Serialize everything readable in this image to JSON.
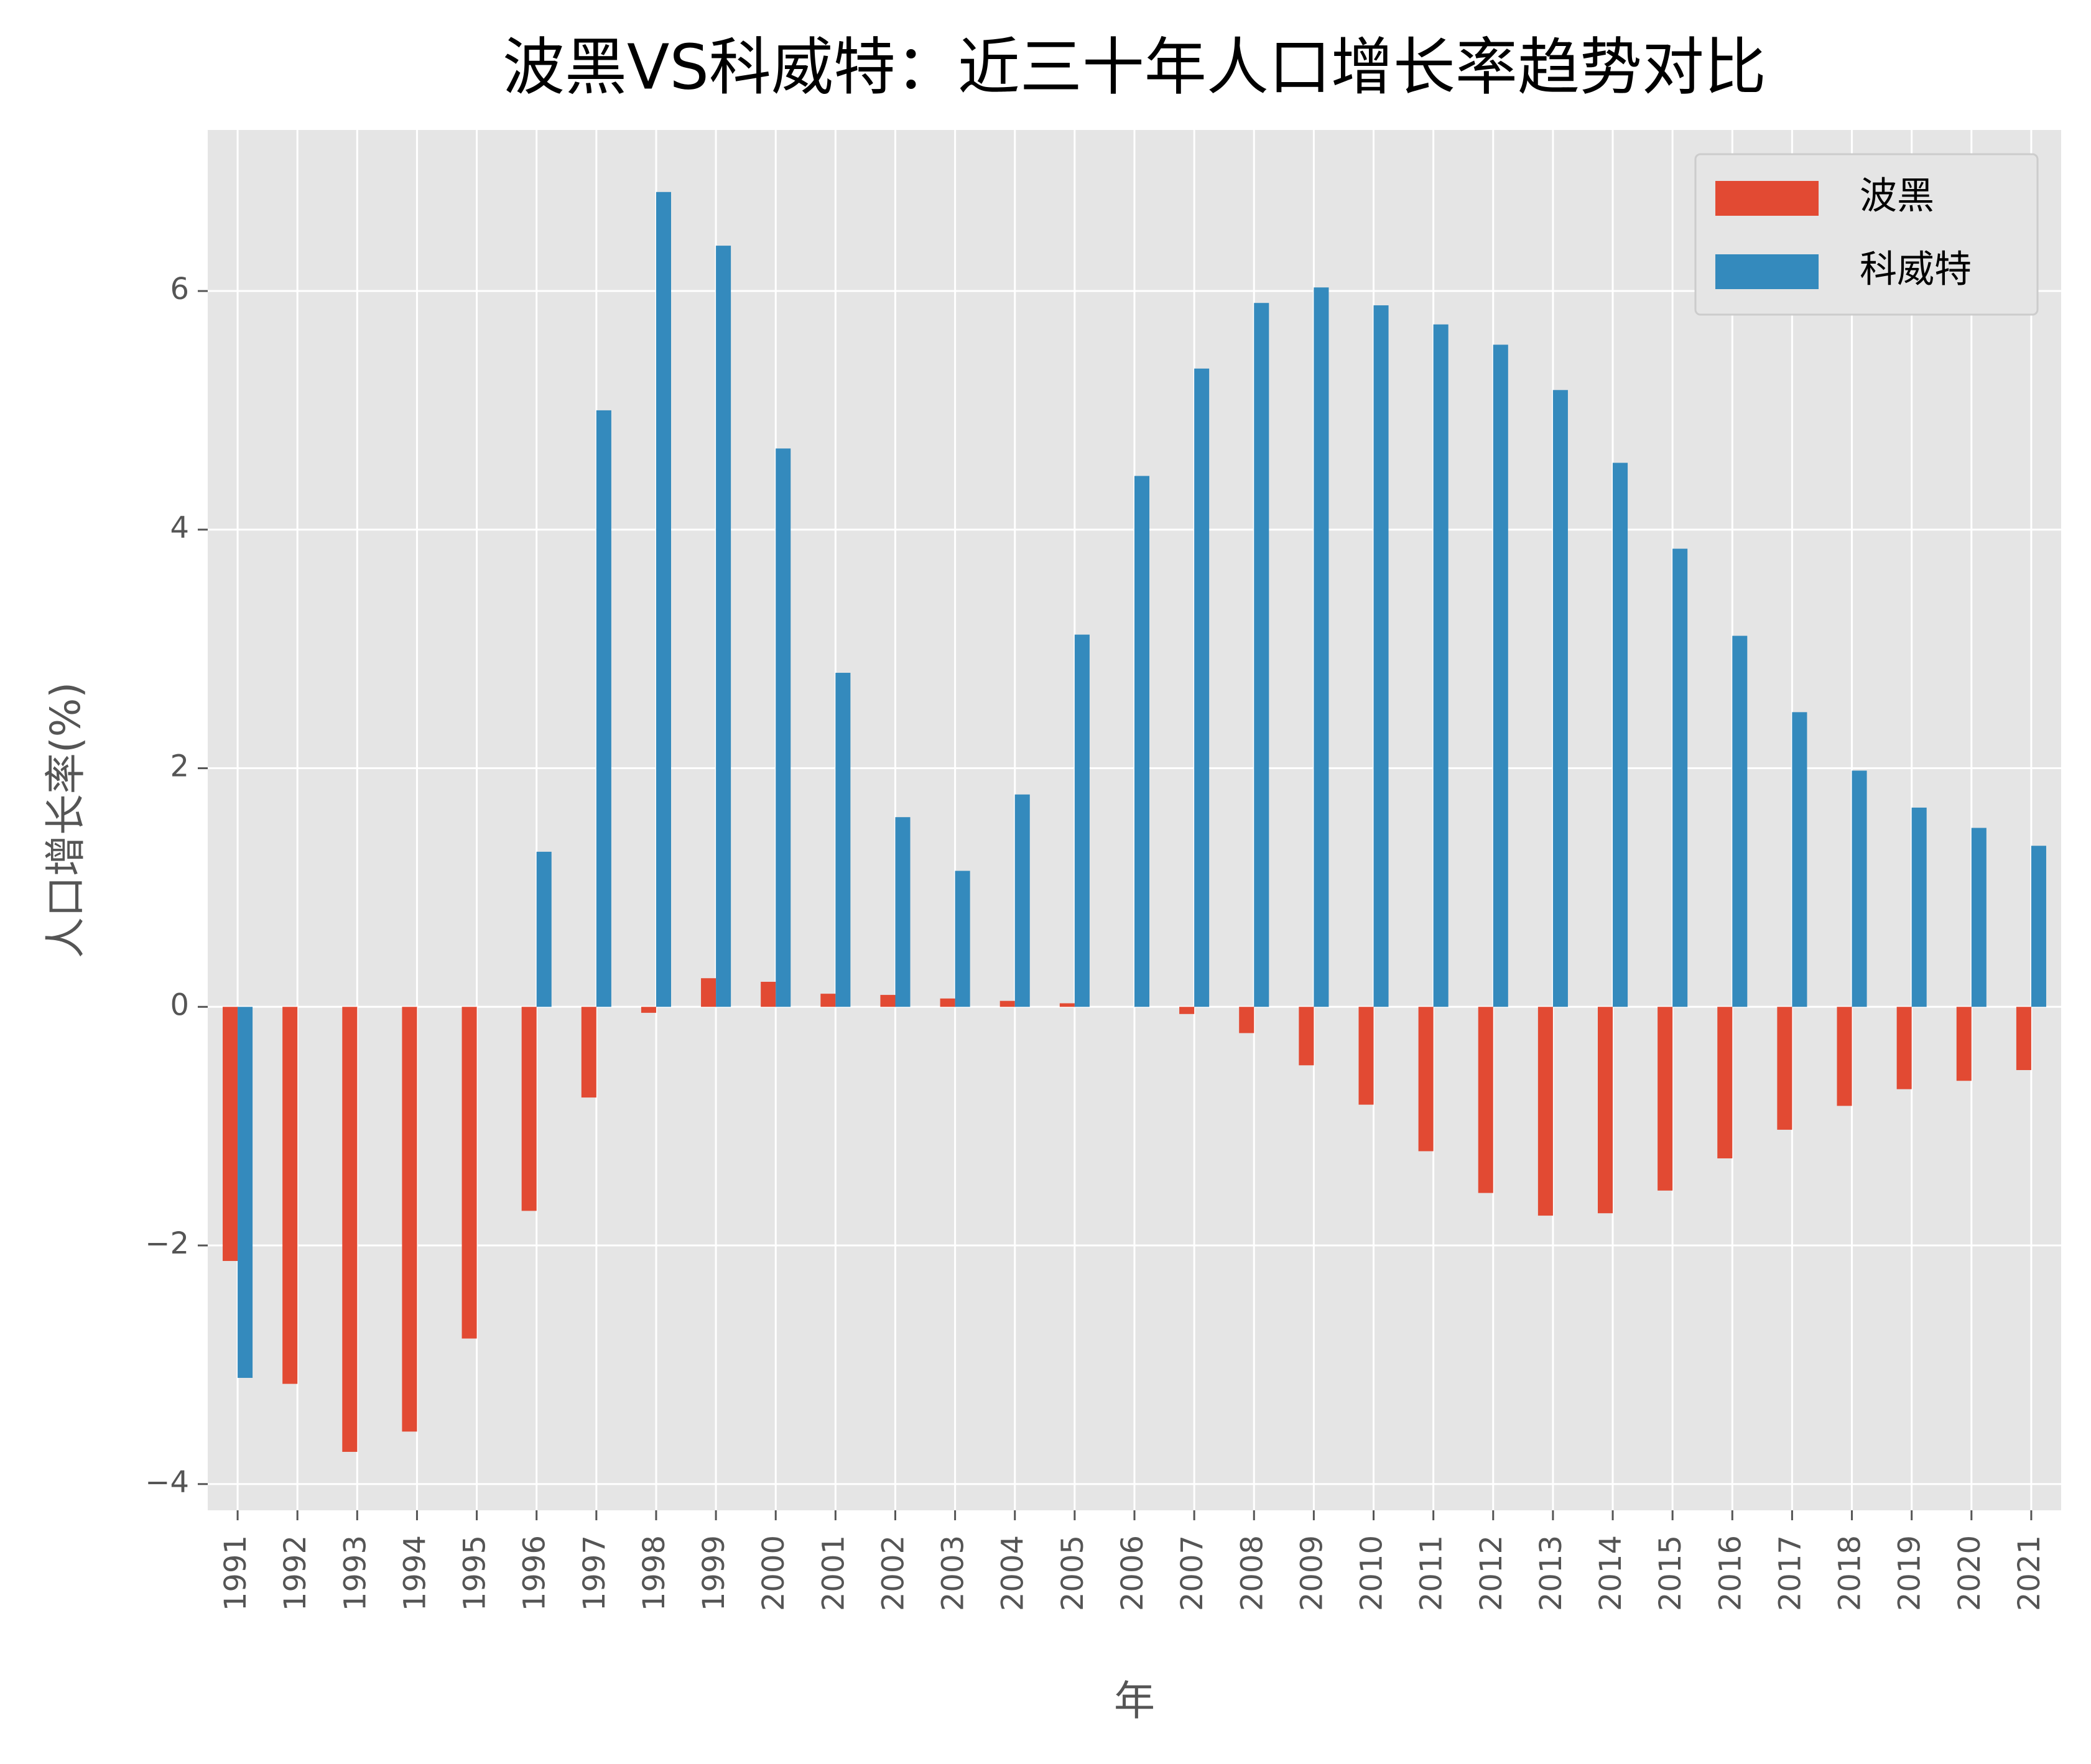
{
  "chart_data": {
    "type": "bar",
    "title": "波黑VS科威特：近三十年人口增长率趋势对比",
    "x_label": "年",
    "y_label": "人口增长率(%)",
    "categories": [
      "1991",
      "1992",
      "1993",
      "1994",
      "1995",
      "1996",
      "1997",
      "1998",
      "1999",
      "2000",
      "2001",
      "2002",
      "2003",
      "2004",
      "2005",
      "2006",
      "2007",
      "2008",
      "2009",
      "2010",
      "2011",
      "2012",
      "2013",
      "2014",
      "2015",
      "2016",
      "2017",
      "2018",
      "2019",
      "2020",
      "2021"
    ],
    "series": [
      {
        "name": "波黑",
        "color": "#E24A33",
        "values": [
          -2.13,
          -3.16,
          -3.73,
          -3.56,
          -2.78,
          -1.71,
          -0.76,
          -0.05,
          0.24,
          0.21,
          0.11,
          0.1,
          0.07,
          0.05,
          0.03,
          0.0,
          -0.06,
          -0.22,
          -0.49,
          -0.82,
          -1.21,
          -1.56,
          -1.75,
          -1.73,
          -1.54,
          -1.27,
          -1.03,
          -0.83,
          -0.69,
          -0.62,
          -0.53
        ]
      },
      {
        "name": "科威特",
        "color": "#348ABD",
        "values": [
          -3.11,
          null,
          null,
          null,
          null,
          1.3,
          5.0,
          6.83,
          6.38,
          4.68,
          2.8,
          1.59,
          1.14,
          1.78,
          3.12,
          4.45,
          5.35,
          5.9,
          6.03,
          5.88,
          5.72,
          5.55,
          5.17,
          4.56,
          3.84,
          3.11,
          2.47,
          1.98,
          1.67,
          1.5,
          1.35
        ]
      }
    ],
    "ylim": [
      -4.22,
      7.35
    ],
    "yticks": [
      {
        "value": -4,
        "label": "−4"
      },
      {
        "value": -2,
        "label": "−2"
      },
      0,
      2,
      4,
      6
    ],
    "grid": true,
    "legend": "upper right"
  }
}
